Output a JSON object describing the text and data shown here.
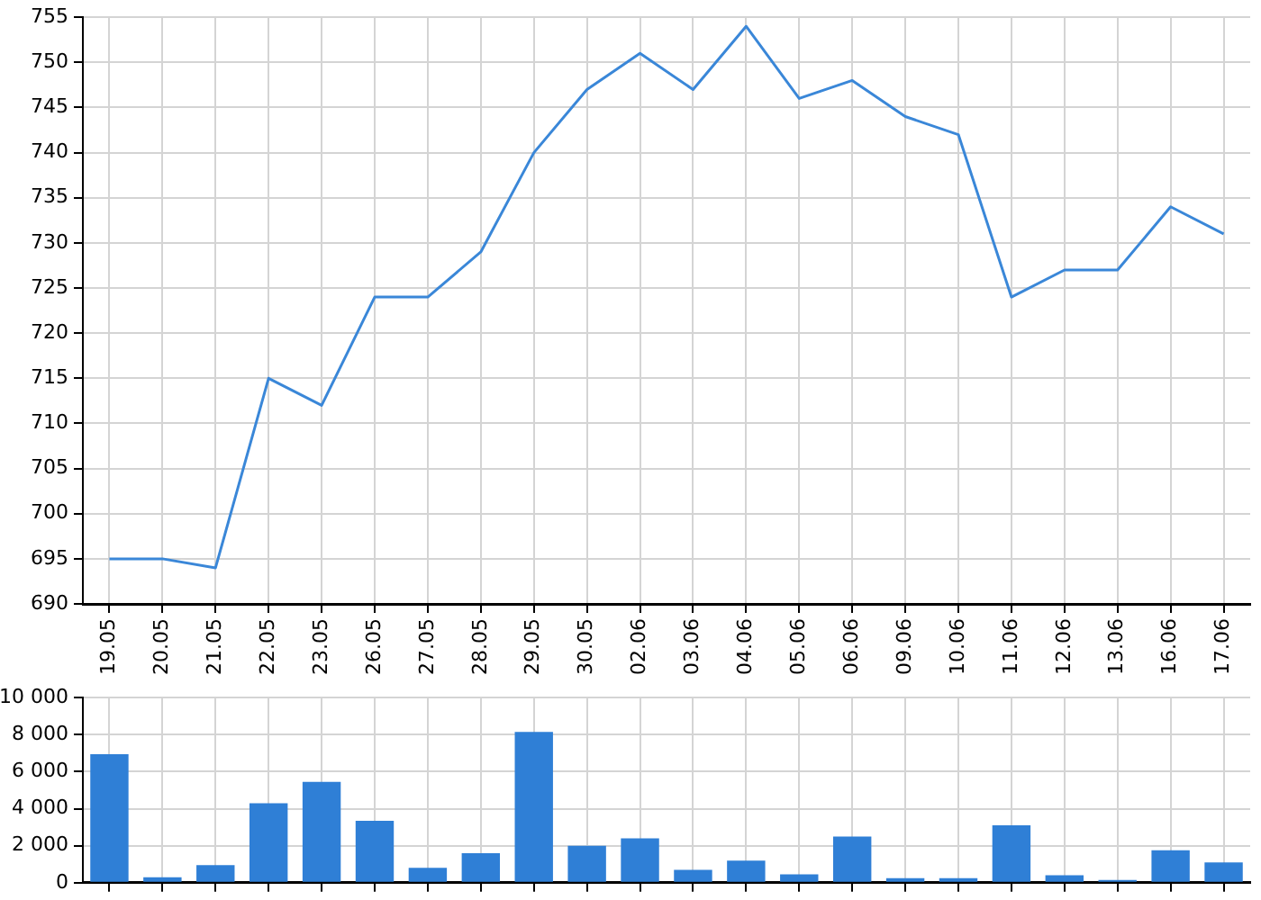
{
  "chart_data": [
    {
      "type": "line",
      "categories": [
        "19.05",
        "20.05",
        "21.05",
        "22.05",
        "23.05",
        "26.05",
        "27.05",
        "28.05",
        "29.05",
        "30.05",
        "02.06",
        "03.06",
        "04.06",
        "05.06",
        "06.06",
        "09.06",
        "10.06",
        "11.06",
        "12.06",
        "13.06",
        "16.06",
        "17.06"
      ],
      "series": [
        {
          "color": "#3a87d8",
          "values": [
            695,
            695,
            694,
            715,
            712,
            724,
            724,
            729,
            740,
            747,
            751,
            747,
            754,
            746,
            748,
            744,
            742,
            724,
            727,
            727,
            734,
            731
          ]
        }
      ],
      "ylim": [
        690,
        755
      ],
      "yticks": [
        690,
        695,
        700,
        705,
        710,
        715,
        720,
        725,
        730,
        735,
        740,
        745,
        750,
        755
      ],
      "grid": true
    },
    {
      "type": "bar",
      "categories": [
        null,
        null,
        null,
        null,
        null,
        null,
        null,
        null,
        null,
        null,
        null,
        null,
        null,
        null,
        null,
        null,
        null,
        null,
        null,
        null,
        null,
        null
      ],
      "series": [
        {
          "color": "#2f7fd6",
          "values": [
            6950,
            300,
            950,
            4300,
            5450,
            3350,
            800,
            1600,
            8150,
            2000,
            2400,
            700,
            1200,
            450,
            2500,
            250,
            250,
            3100,
            400,
            150,
            1750,
            1100
          ]
        }
      ],
      "ylim": [
        0,
        10000
      ],
      "yticks": [
        0,
        {
          "value": 2000,
          "label": "2 000"
        },
        {
          "value": 4000,
          "label": "4 000"
        },
        {
          "value": 6000,
          "label": "6 000"
        },
        {
          "value": 8000,
          "label": "8 000"
        },
        {
          "value": 10000,
          "label": "10 000"
        }
      ],
      "grid": true,
      "tick_labels": "y"
    }
  ]
}
